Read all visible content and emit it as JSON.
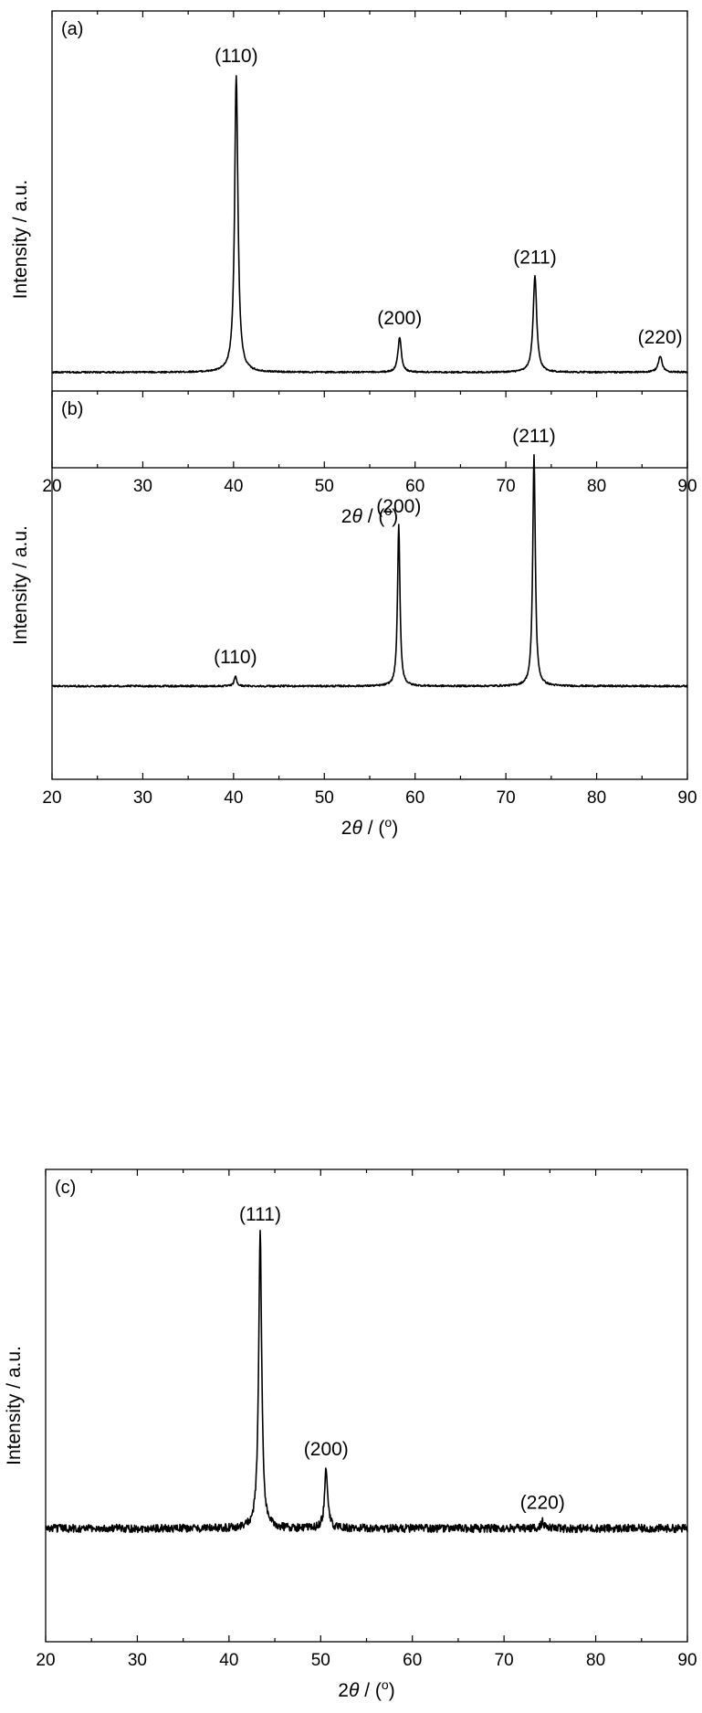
{
  "chart_data": [
    {
      "type": "line",
      "panel_label": "(a)",
      "xlabel_prefix": "2",
      "xlabel_symbol": "θ",
      "xlabel_suffix": " / (",
      "xlabel_degree": "o",
      "xlabel_close": ")",
      "ylabel": "Intensity / a.u.",
      "xlim": [
        20,
        90
      ],
      "ylim": [
        0,
        100
      ],
      "xticks": [
        "20",
        "30",
        "40",
        "50",
        "60",
        "70",
        "80",
        "90"
      ],
      "yticks_shown": false,
      "grid": false,
      "legend": false,
      "baseline": 7,
      "noise": 0.25,
      "peaks": [
        {
          "label": "(110)",
          "x": 40.3,
          "y": 100,
          "width": 0.22
        },
        {
          "label": "(200)",
          "x": 58.3,
          "y": 18,
          "width": 0.22
        },
        {
          "label": "(211)",
          "x": 73.2,
          "y": 37,
          "width": 0.24
        },
        {
          "label": "(220)",
          "x": 87.0,
          "y": 12,
          "width": 0.26
        }
      ]
    },
    {
      "type": "line",
      "panel_label": "(b)",
      "xlabel_prefix": "2",
      "xlabel_symbol": "θ",
      "xlabel_suffix": " / (",
      "xlabel_degree": "o",
      "xlabel_close": ")",
      "ylabel": "Intensity / a.u.",
      "xlim": [
        20,
        90
      ],
      "ylim": [
        0,
        100
      ],
      "xticks": [
        "20",
        "30",
        "40",
        "50",
        "60",
        "70",
        "80",
        "90"
      ],
      "yticks_shown": false,
      "grid": false,
      "legend": false,
      "baseline": 8,
      "noise": 0.35,
      "peaks": [
        {
          "label": "(110)",
          "x": 40.2,
          "y": 12,
          "width": 0.16
        },
        {
          "label": "(200)",
          "x": 58.2,
          "y": 72,
          "width": 0.16
        },
        {
          "label": "(211)",
          "x": 73.1,
          "y": 100,
          "width": 0.17
        }
      ]
    },
    {
      "type": "line",
      "panel_label": "(c)",
      "xlabel_prefix": "2",
      "xlabel_symbol": "θ",
      "xlabel_suffix": " / (",
      "xlabel_degree": "o",
      "xlabel_close": ")",
      "ylabel": "Intensity / a.u.",
      "xlim": [
        20,
        90
      ],
      "ylim": [
        0,
        100
      ],
      "xticks": [
        "20",
        "30",
        "40",
        "50",
        "60",
        "70",
        "80",
        "90"
      ],
      "yticks_shown": false,
      "grid": false,
      "legend": false,
      "baseline": 12,
      "noise": 1.2,
      "peaks": [
        {
          "label": "(111)",
          "x": 43.4,
          "y": 100,
          "width": 0.2
        },
        {
          "label": "(200)",
          "x": 50.6,
          "y": 30,
          "width": 0.2
        },
        {
          "label": "(220)",
          "x": 74.2,
          "y": 14,
          "width": 0.22
        }
      ]
    }
  ]
}
